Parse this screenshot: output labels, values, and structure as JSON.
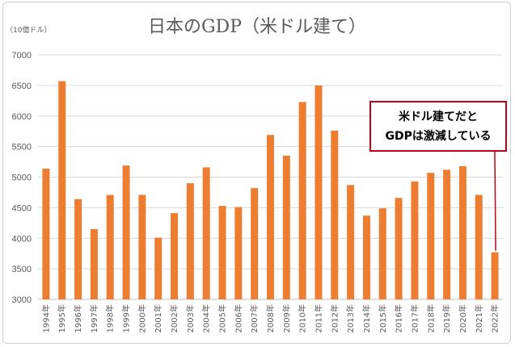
{
  "chart_data": {
    "type": "bar",
    "title": "日本のGDP（米ドル建て）",
    "unit_label": "（10億ドル）",
    "categories": [
      "1994年",
      "1995年",
      "1996年",
      "1997年",
      "1998年",
      "1999年",
      "2000年",
      "2001年",
      "2002年",
      "2003年",
      "2004年",
      "2005年",
      "2006年",
      "2007年",
      "2008年",
      "2009年",
      "2010年",
      "2011年",
      "2012年",
      "2013年",
      "2014年",
      "2015年",
      "2016年",
      "2017年",
      "2018年",
      "2019年",
      "2020年",
      "2021年",
      "2022年"
    ],
    "values": [
      5140,
      6570,
      4640,
      4150,
      4710,
      5190,
      4710,
      4010,
      4410,
      4900,
      5160,
      4530,
      4510,
      4820,
      5690,
      5350,
      6230,
      6500,
      5760,
      4870,
      4370,
      4490,
      4660,
      4930,
      5070,
      5120,
      5180,
      4710,
      3770
    ],
    "ylim": [
      3000,
      7000
    ],
    "yticks": [
      3000,
      3500,
      4000,
      4500,
      5000,
      5500,
      6000,
      6500,
      7000
    ],
    "grid": true,
    "bar_color": "#ed7d31",
    "annotation": {
      "lines": [
        "米ドル建てだと",
        "GDPは激減している"
      ],
      "border_color": "#c0001a",
      "target_category": "2022年"
    }
  }
}
